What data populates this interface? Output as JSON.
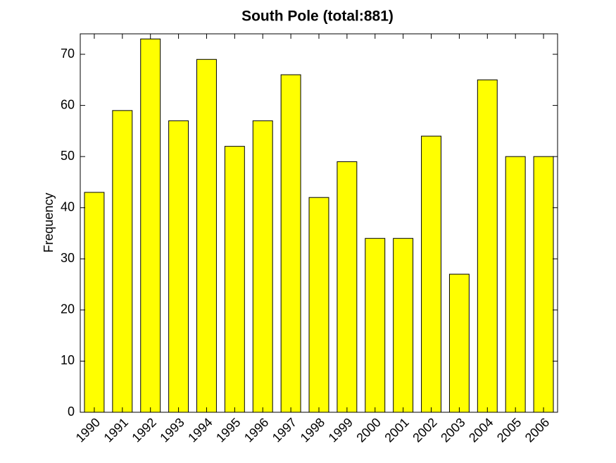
{
  "chart_data": {
    "type": "bar",
    "title": "South Pole  (total:881)",
    "y_label": "Frequency",
    "categories": [
      "1990",
      "1991",
      "1992",
      "1993",
      "1994",
      "1995",
      "1996",
      "1997",
      "1998",
      "1999",
      "2000",
      "2001",
      "2002",
      "2003",
      "2004",
      "2005",
      "2006"
    ],
    "values": [
      43,
      59,
      73,
      57,
      69,
      52,
      57,
      66,
      42,
      49,
      34,
      34,
      54,
      27,
      65,
      50,
      50
    ],
    "color": "#ffff00",
    "ylim": [
      0,
      74
    ],
    "yticks": [
      0,
      10,
      20,
      30,
      40,
      50,
      60,
      70
    ],
    "grid": false
  }
}
